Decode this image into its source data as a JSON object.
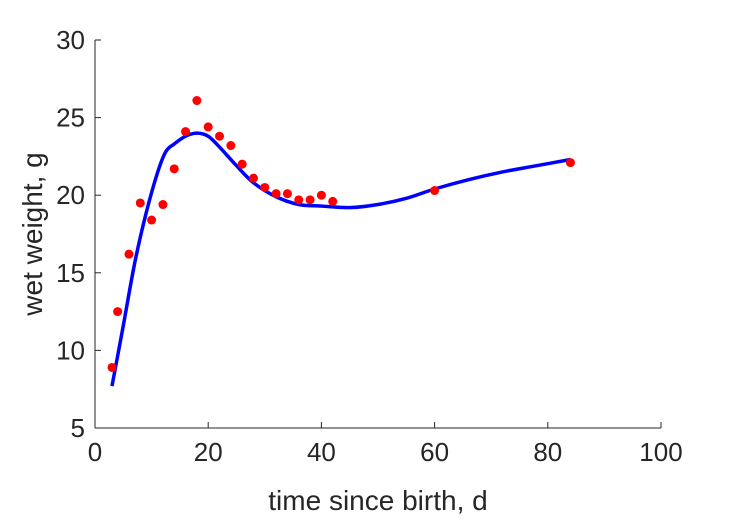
{
  "chart_data": {
    "type": "scatter",
    "xlabel": "time since birth, d",
    "ylabel": "wet weight, g",
    "xlim": [
      0,
      100
    ],
    "ylim": [
      5,
      30
    ],
    "xticks": [
      0,
      20,
      40,
      60,
      80,
      100
    ],
    "yticks": [
      5,
      10,
      15,
      20,
      25,
      30
    ],
    "grid": false,
    "colors": {
      "points": "#ff0000",
      "curve": "#0000ff",
      "axes": "#262626"
    },
    "series": [
      {
        "kind": "scatter",
        "x": [
          3,
          4,
          6,
          8,
          10,
          12,
          14,
          16,
          18,
          20,
          22,
          24,
          26,
          28,
          30,
          32,
          34,
          36,
          38,
          40,
          42,
          60,
          84
        ],
        "y": [
          8.9,
          12.5,
          16.2,
          19.5,
          18.4,
          19.4,
          21.7,
          24.1,
          26.1,
          24.4,
          23.8,
          23.2,
          22.0,
          21.1,
          20.5,
          20.1,
          20.1,
          19.7,
          19.7,
          20.0,
          19.6,
          20.3,
          22.1
        ]
      },
      {
        "kind": "line",
        "x": [
          3,
          5,
          7,
          9,
          11,
          12.5,
          14,
          16,
          18,
          20,
          22,
          25,
          28,
          32,
          36,
          40,
          45,
          50,
          55,
          60,
          66,
          72,
          78,
          84
        ],
        "y": [
          7.7,
          11.6,
          15.6,
          18.8,
          21.4,
          22.8,
          23.3,
          23.8,
          24.0,
          23.8,
          23.1,
          21.9,
          20.8,
          19.9,
          19.4,
          19.3,
          19.2,
          19.4,
          19.8,
          20.4,
          21.0,
          21.5,
          21.9,
          22.3
        ]
      }
    ]
  }
}
